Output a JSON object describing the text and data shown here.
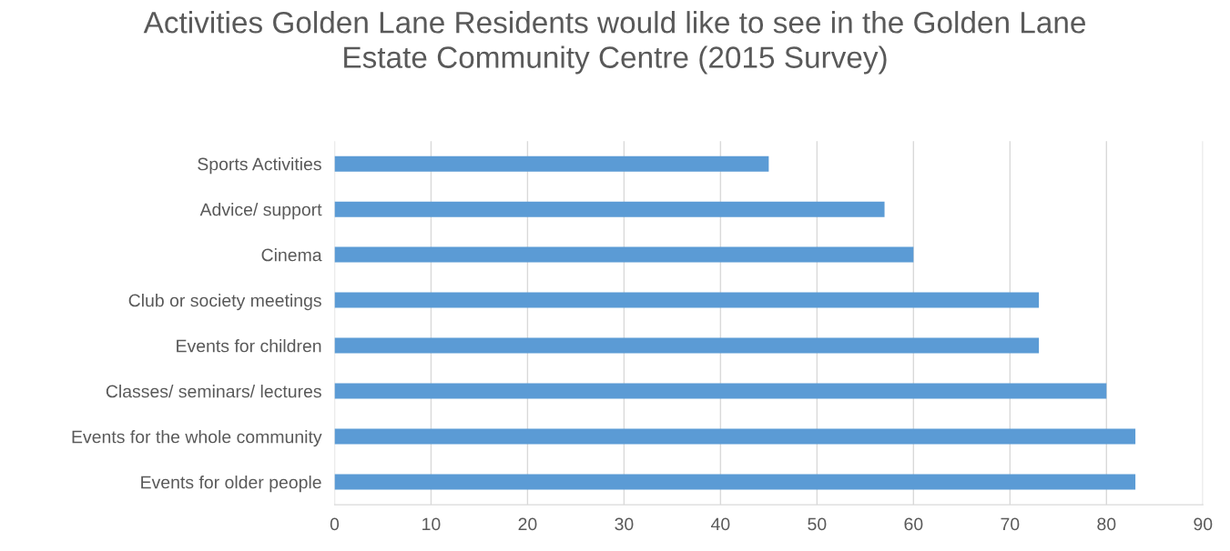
{
  "chart_data": {
    "type": "bar",
    "orientation": "horizontal",
    "title": "Activities Golden Lane Residents would like to see in the Golden Lane\nEstate Community Centre (2015 Survey)",
    "categories": [
      "Sports Activities",
      "Advice/ support",
      "Cinema",
      "Club or society meetings",
      "Events for children",
      "Classes/ seminars/ lectures",
      "Events for the whole community",
      "Events for older people"
    ],
    "values": [
      45,
      57,
      60,
      73,
      73,
      80,
      83,
      83
    ],
    "color": "#5b9bd5",
    "xlim": [
      0,
      90
    ],
    "xticks": [
      0,
      10,
      20,
      30,
      40,
      50,
      60,
      70,
      80,
      90
    ],
    "grid": "x"
  }
}
